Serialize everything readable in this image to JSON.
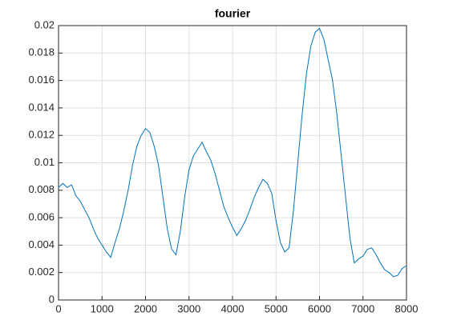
{
  "chart_data": {
    "type": "line",
    "title": "fourier",
    "x": [
      0,
      100,
      200,
      300,
      400,
      500,
      600,
      700,
      800,
      900,
      1000,
      1100,
      1200,
      1300,
      1400,
      1500,
      1600,
      1700,
      1800,
      1900,
      2000,
      2100,
      2200,
      2300,
      2400,
      2500,
      2600,
      2700,
      2800,
      2900,
      3000,
      3100,
      3200,
      3300,
      3400,
      3500,
      3600,
      3700,
      3800,
      3900,
      4000,
      4100,
      4200,
      4300,
      4400,
      4500,
      4600,
      4700,
      4800,
      4900,
      5000,
      5100,
      5200,
      5300,
      5400,
      5500,
      5600,
      5700,
      5800,
      5900,
      6000,
      6100,
      6200,
      6300,
      6400,
      6500,
      6600,
      6700,
      6800,
      6900,
      7000,
      7100,
      7200,
      7300,
      7400,
      7500,
      7600,
      7700,
      7800,
      7900,
      8000
    ],
    "series": [
      {
        "color": "#0072bd",
        "values": [
          0.0082,
          0.0085,
          0.0082,
          0.0084,
          0.0076,
          0.0072,
          0.0066,
          0.006,
          0.0052,
          0.0045,
          0.004,
          0.0035,
          0.0031,
          0.0042,
          0.0052,
          0.0065,
          0.008,
          0.0098,
          0.0112,
          0.012,
          0.0125,
          0.0122,
          0.0112,
          0.0098,
          0.0075,
          0.0052,
          0.0037,
          0.0033,
          0.005,
          0.0075,
          0.0095,
          0.0105,
          0.011,
          0.0115,
          0.0108,
          0.0102,
          0.0092,
          0.008,
          0.0068,
          0.006,
          0.0053,
          0.0047,
          0.0052,
          0.0058,
          0.0066,
          0.0075,
          0.0082,
          0.0088,
          0.0085,
          0.0078,
          0.0058,
          0.0042,
          0.0035,
          0.0038,
          0.0065,
          0.01,
          0.0135,
          0.0165,
          0.0185,
          0.0195,
          0.0198,
          0.019,
          0.0175,
          0.016,
          0.0135,
          0.0105,
          0.0075,
          0.0045,
          0.0027,
          0.003,
          0.0032,
          0.0037,
          0.0038,
          0.0033,
          0.0027,
          0.0022,
          0.002,
          0.0017,
          0.0018,
          0.0023,
          0.0025
        ]
      }
    ],
    "xlim": [
      0,
      8000
    ],
    "xticks": [
      0,
      1000,
      2000,
      3000,
      4000,
      5000,
      6000,
      7000,
      8000
    ],
    "ylim": [
      0,
      0.02
    ],
    "yticks": [
      0,
      0.002,
      0.004,
      0.006,
      0.008,
      0.01,
      0.012,
      0.014,
      0.016,
      0.018,
      0.02
    ],
    "grid": true
  }
}
